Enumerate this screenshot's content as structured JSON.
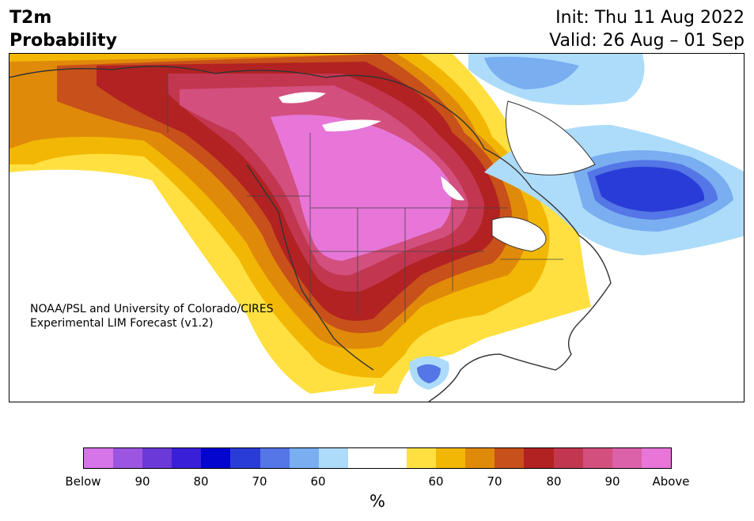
{
  "title": {
    "left_line1": "T2m",
    "left_line2": "Probability",
    "init": "Init: Thu 11 Aug 2022",
    "valid": "Valid: 26 Aug – 01 Sep"
  },
  "credit": {
    "line1": "NOAA/PSL and University of Colorado/CIRES",
    "line2": "Experimental LIM Forecast (v1.2)"
  },
  "colorbar": {
    "colors": [
      "#d674ea",
      "#9c55e0",
      "#6a39d8",
      "#3a1fd8",
      "#0505d0",
      "#2a3cd8",
      "#5476e6",
      "#79aef0",
      "#addcfa",
      "#ffffff",
      "#ffffff",
      "#ffe040",
      "#f2b705",
      "#e08a0a",
      "#c8501a",
      "#b22222",
      "#c33650",
      "#d24f7e",
      "#db61a8",
      "#e776d8"
    ],
    "ticks": [
      "Below",
      "90",
      "80",
      "70",
      "60",
      "60",
      "70",
      "80",
      "90",
      "Above"
    ],
    "unit": "%"
  }
}
